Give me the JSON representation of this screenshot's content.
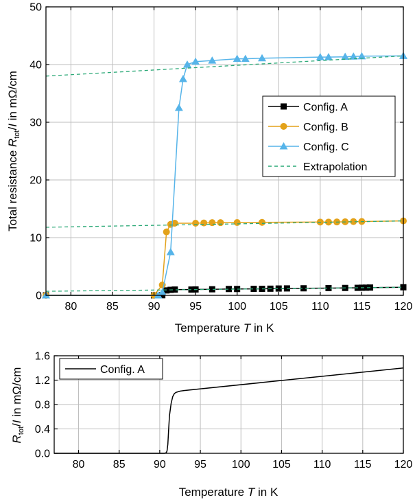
{
  "chart_data": [
    {
      "type": "line",
      "xlabel": {
        "pre": "Temperature ",
        "var": "T",
        "post": " in  K"
      },
      "ylabel": {
        "pre": "Total resistance ",
        "R": "R",
        "sub": "tot",
        "post": "/",
        "I": "I",
        "unit": " in  mΩ/cm"
      },
      "xlim": [
        77,
        120
      ],
      "ylim": [
        0,
        50
      ],
      "xticks": [
        "80",
        "85",
        "90",
        "95",
        "100",
        "105",
        "110",
        "115",
        "120"
      ],
      "yticks": [
        "0",
        "10",
        "20",
        "30",
        "40",
        "50"
      ],
      "grid": true,
      "legend_position": "center-right",
      "series": [
        {
          "name": "Config. A",
          "color": "#000000",
          "marker": "square",
          "x": [
            77,
            90,
            91,
            91.5,
            92,
            92.5,
            94.5,
            95,
            97,
            99,
            100,
            102,
            103,
            104,
            105,
            106,
            108,
            111,
            113,
            114.5,
            115,
            115.5,
            116,
            120
          ],
          "y": [
            0,
            0,
            0.02,
            0.85,
            0.95,
            1.0,
            1.0,
            1.02,
            1.05,
            1.1,
            1.1,
            1.12,
            1.13,
            1.15,
            1.18,
            1.2,
            1.22,
            1.25,
            1.28,
            1.3,
            1.32,
            1.33,
            1.35,
            1.4
          ]
        },
        {
          "name": "Config. B",
          "color": "#E3A21A",
          "marker": "circle",
          "x": [
            77,
            90,
            91,
            91.5,
            92,
            92.5,
            95,
            96,
            97,
            98,
            100,
            103,
            110,
            111,
            112,
            113,
            114,
            115,
            120
          ],
          "y": [
            0,
            0,
            1.8,
            11.0,
            12.3,
            12.5,
            12.5,
            12.55,
            12.6,
            12.6,
            12.62,
            12.65,
            12.7,
            12.7,
            12.72,
            12.75,
            12.78,
            12.8,
            12.9
          ]
        },
        {
          "name": "Config. C",
          "color": "#56B4E9",
          "marker": "triangle",
          "x": [
            77,
            90.5,
            91,
            92,
            93,
            93.5,
            94,
            95,
            97,
            100,
            101,
            103,
            110,
            111,
            113,
            114,
            115,
            120
          ],
          "y": [
            0,
            0,
            0.5,
            7.5,
            32.5,
            37.5,
            40.0,
            40.5,
            40.7,
            41.0,
            41.0,
            41.1,
            41.3,
            41.3,
            41.35,
            41.4,
            41.45,
            41.5
          ]
        },
        {
          "name": "Extrapolation",
          "color": "#2AA876",
          "style": "dashed",
          "lines": [
            {
              "x": [
                77,
                120
              ],
              "y": [
                38.0,
                41.5
              ]
            },
            {
              "x": [
                77,
                120
              ],
              "y": [
                11.8,
                12.9
              ]
            },
            {
              "x": [
                77,
                120
              ],
              "y": [
                0.7,
                1.4
              ]
            }
          ]
        }
      ]
    },
    {
      "type": "line",
      "xlabel": {
        "pre": "Temperature ",
        "var": "T",
        "post": " in  K"
      },
      "ylabel": {
        "R": "R",
        "sub": "tot",
        "post": "/",
        "I": "I",
        "unit": " in mΩ/cm"
      },
      "xlim": [
        77,
        120
      ],
      "ylim": [
        0,
        1.6
      ],
      "xticks": [
        "80",
        "85",
        "90",
        "95",
        "100",
        "105",
        "110",
        "115",
        "120"
      ],
      "yticks": [
        "0.0",
        "0.4",
        "0.8",
        "1.2",
        "1.6"
      ],
      "grid": true,
      "legend_position": "top-left",
      "series": [
        {
          "name": "Config. A",
          "color": "#000000",
          "x": [
            77,
            90.6,
            90.8,
            90.9,
            91.0,
            91.1,
            91.2,
            91.4,
            91.6,
            91.8,
            92.0,
            92.5,
            93,
            120
          ],
          "y": [
            0,
            0,
            0.01,
            0.04,
            0.15,
            0.4,
            0.62,
            0.82,
            0.93,
            0.98,
            1.0,
            1.02,
            1.03,
            1.4
          ]
        }
      ]
    }
  ]
}
